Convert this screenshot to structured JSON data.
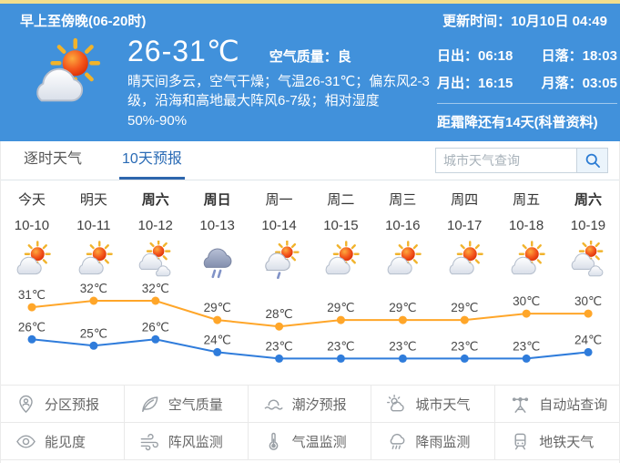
{
  "header": {
    "period_title": "早上至傍晚(06-20时)",
    "update_time": "更新时间：10月10日 04:49",
    "temp_range": "26-31℃",
    "air_quality": "空气质量：良",
    "description": "晴天间多云，空气干燥；气温26-31℃；偏东风2-3级，沿海和高地最大阵风6-7级；相对湿度50%-90%",
    "astro": {
      "sunrise": "日出：06:18",
      "sunset": "日落：18:03",
      "moonrise": "月出：16:15",
      "moonset": "月落：03:05"
    },
    "frost_note": "距霜降还有14天(科普资料)",
    "icon": "partly-cloudy"
  },
  "tabs": {
    "hourly": "逐时天气",
    "ten_day": "10天预报"
  },
  "search": {
    "placeholder": "城市天气查询",
    "icon": "search-icon"
  },
  "forecast": {
    "days": [
      {
        "weekday": "今天",
        "date": "10-10",
        "icon": "partly-cloudy",
        "bold": false
      },
      {
        "weekday": "明天",
        "date": "10-11",
        "icon": "partly-cloudy",
        "bold": false
      },
      {
        "weekday": "周六",
        "date": "10-12",
        "icon": "mostly-cloudy",
        "bold": true
      },
      {
        "weekday": "周日",
        "date": "10-13",
        "icon": "rain",
        "bold": true
      },
      {
        "weekday": "周一",
        "date": "10-14",
        "icon": "shower",
        "bold": false
      },
      {
        "weekday": "周二",
        "date": "10-15",
        "icon": "partly-cloudy",
        "bold": false
      },
      {
        "weekday": "周三",
        "date": "10-16",
        "icon": "partly-cloudy",
        "bold": false
      },
      {
        "weekday": "周四",
        "date": "10-17",
        "icon": "partly-cloudy",
        "bold": false
      },
      {
        "weekday": "周五",
        "date": "10-18",
        "icon": "partly-cloudy",
        "bold": false
      },
      {
        "weekday": "周六",
        "date": "10-19",
        "icon": "mostly-cloudy",
        "bold": true
      }
    ]
  },
  "chart_data": {
    "type": "line",
    "title": "",
    "x": [
      "10-10",
      "10-11",
      "10-12",
      "10-13",
      "10-14",
      "10-15",
      "10-16",
      "10-17",
      "10-18",
      "10-19"
    ],
    "series": [
      {
        "name": "high",
        "color": "#ffa629",
        "values": [
          31,
          32,
          32,
          29,
          28,
          29,
          29,
          29,
          30,
          30
        ]
      },
      {
        "name": "low",
        "color": "#2f7cdb",
        "values": [
          26,
          25,
          26,
          24,
          23,
          23,
          23,
          23,
          23,
          24
        ]
      }
    ],
    "unit": "℃",
    "ylim": [
      22,
      33
    ],
    "grid": false,
    "legend": "none",
    "point_labels": true,
    "label_color": "#474747"
  },
  "menu": {
    "items": [
      {
        "label": "分区预报",
        "icon": "pin-person-icon"
      },
      {
        "label": "空气质量",
        "icon": "leaf-icon"
      },
      {
        "label": "潮汐预报",
        "icon": "tide-icon"
      },
      {
        "label": "城市天气",
        "icon": "city-sun-cloud-icon"
      },
      {
        "label": "自动站查询",
        "icon": "station-icon"
      },
      {
        "label": "能见度",
        "icon": "eye-icon"
      },
      {
        "label": "阵风监测",
        "icon": "wind-icon"
      },
      {
        "label": "气温监测",
        "icon": "thermometer-icon"
      },
      {
        "label": "降雨监测",
        "icon": "rain-cloud-icon"
      },
      {
        "label": "地铁天气",
        "icon": "metro-icon"
      }
    ]
  },
  "colors": {
    "header_bg": "#4191db",
    "header_strip": "#f2de8c",
    "active_tab": "#2a6bb5",
    "high_line": "#ffa629",
    "low_line": "#2f7cdb"
  }
}
